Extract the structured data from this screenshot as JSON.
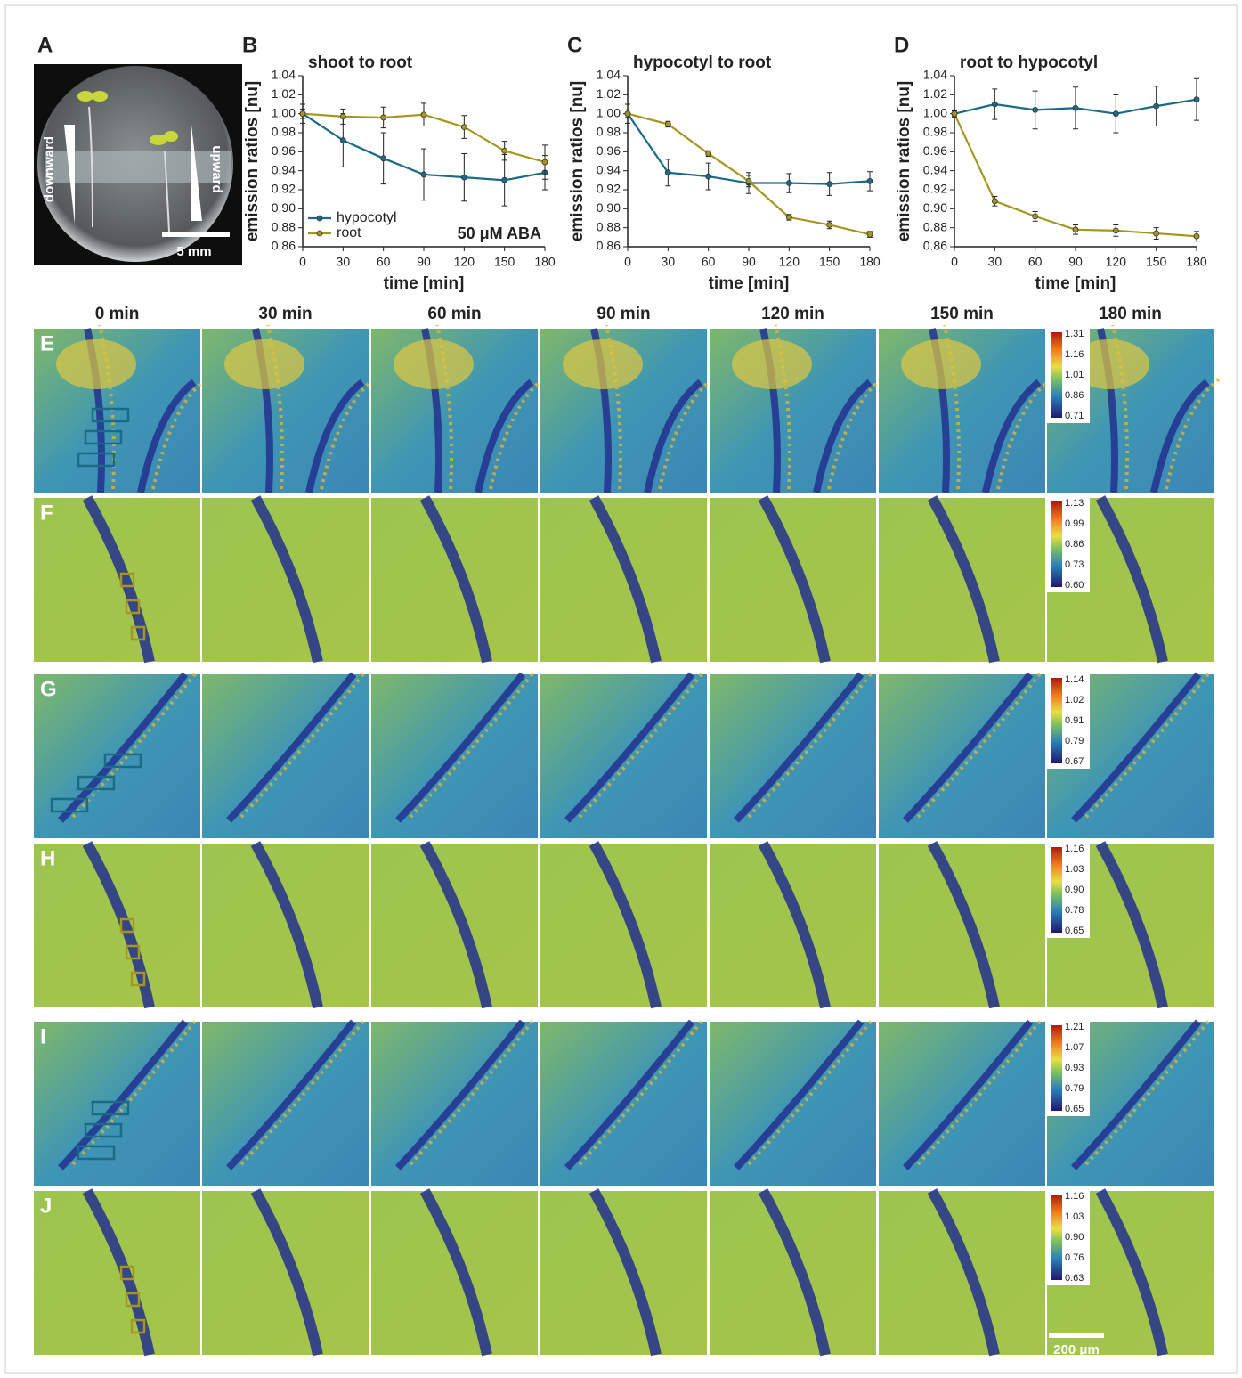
{
  "photo": {
    "label": "A",
    "left_arrow": "downward",
    "right_arrow": "upward",
    "scale_bar": "5 mm"
  },
  "time_labels": [
    "0 min",
    "30 min",
    "60 min",
    "90 min",
    "120 min",
    "150 min",
    "180 min"
  ],
  "image_rows": [
    {
      "label": "E",
      "colorbar": [
        "1.31",
        "1.16",
        "1.01",
        "0.86",
        "0.71"
      ]
    },
    {
      "label": "F",
      "colorbar": [
        "1.13",
        "0.99",
        "0.86",
        "0.73",
        "0.60"
      ]
    },
    {
      "label": "G",
      "colorbar": [
        "1.14",
        "1.02",
        "0.91",
        "0.79",
        "0.67"
      ]
    },
    {
      "label": "H",
      "colorbar": [
        "1.16",
        "1.03",
        "0.90",
        "0.78",
        "0.65"
      ]
    },
    {
      "label": "I",
      "colorbar": [
        "1.21",
        "1.07",
        "0.93",
        "0.79",
        "0.65"
      ]
    },
    {
      "label": "J",
      "colorbar": [
        "1.16",
        "1.03",
        "0.90",
        "0.76",
        "0.63"
      ]
    }
  ],
  "image_scale_bar": "200 μm",
  "chart_data": [
    {
      "type": "line",
      "label": "B",
      "title": "shoot to root",
      "xlabel": "time [min]",
      "ylabel": "emission ratios [nu]",
      "x": [
        0,
        30,
        60,
        90,
        120,
        150,
        180
      ],
      "xlim": [
        0,
        180
      ],
      "xticks": [
        0,
        30,
        60,
        90,
        120,
        150,
        180
      ],
      "ylim": [
        0.86,
        1.04
      ],
      "yticks": [
        0.86,
        0.88,
        {
          "value": 0.9,
          "label": "0.90"
        },
        0.92,
        0.94,
        0.96,
        0.98,
        {
          "value": 1,
          "label": "1.00"
        },
        1.02,
        1.04
      ],
      "legend": "lower left",
      "annotation": "50 μM ABA",
      "series": [
        {
          "name": "hypocotyl",
          "color": "#1b6a87",
          "values": [
            1.0,
            0.972,
            0.953,
            0.936,
            0.933,
            0.93,
            0.938
          ],
          "error": [
            0.005,
            0.028,
            0.027,
            0.027,
            0.025,
            0.027,
            0.018
          ]
        },
        {
          "name": "root",
          "color": "#a5961f",
          "values": [
            1.0,
            0.997,
            0.996,
            0.999,
            0.986,
            0.961,
            0.949
          ],
          "error": [
            0.01,
            0.008,
            0.011,
            0.012,
            0.012,
            0.01,
            0.018
          ]
        }
      ]
    },
    {
      "type": "line",
      "label": "C",
      "title": "hypocotyl to root",
      "xlabel": "time [min]",
      "ylabel": "emission ratios [nu]",
      "x": [
        0,
        30,
        60,
        90,
        120,
        150,
        180
      ],
      "xlim": [
        0,
        180
      ],
      "xticks": [
        0,
        30,
        60,
        90,
        120,
        150,
        180
      ],
      "ylim": [
        0.86,
        1.04
      ],
      "yticks": [
        0.86,
        0.88,
        {
          "value": 0.9,
          "label": "0.90"
        },
        0.92,
        0.94,
        0.96,
        0.98,
        {
          "value": 1,
          "label": "1.00"
        },
        1.02,
        1.04
      ],
      "series": [
        {
          "color": "#1b6a87",
          "values": [
            1.0,
            0.938,
            0.934,
            0.927,
            0.927,
            0.926,
            0.929
          ],
          "error": [
            0.01,
            0.014,
            0.014,
            0.011,
            0.01,
            0.012,
            0.01
          ]
        },
        {
          "color": "#a5961f",
          "values": [
            1.0,
            0.989,
            0.958,
            0.929,
            0.891,
            0.883,
            0.873
          ],
          "error": [
            0.004,
            0.003,
            0.003,
            0.006,
            0.003,
            0.004,
            0.003
          ]
        }
      ]
    },
    {
      "type": "line",
      "label": "D",
      "title": "root to hypocotyl",
      "xlabel": "time [min]",
      "ylabel": "emission ratios [nu]",
      "x": [
        0,
        30,
        60,
        90,
        120,
        150,
        180
      ],
      "xlim": [
        0,
        180
      ],
      "xticks": [
        0,
        30,
        60,
        90,
        120,
        150,
        180
      ],
      "ylim": [
        0.86,
        1.04
      ],
      "yticks": [
        0.86,
        0.88,
        {
          "value": 0.9,
          "label": "0.90"
        },
        0.92,
        0.94,
        0.96,
        0.98,
        {
          "value": 1,
          "label": "1.00"
        },
        1.02,
        1.04
      ],
      "series": [
        {
          "color": "#1b6a87",
          "values": [
            1.0,
            1.01,
            1.004,
            1.006,
            1.0,
            1.008,
            1.015
          ],
          "error": [
            0.003,
            0.016,
            0.02,
            0.022,
            0.02,
            0.021,
            0.022
          ]
        },
        {
          "color": "#a5961f",
          "values": [
            1.0,
            0.908,
            0.892,
            0.878,
            0.877,
            0.874,
            0.871
          ],
          "error": [
            0.004,
            0.005,
            0.005,
            0.005,
            0.006,
            0.006,
            0.005
          ]
        }
      ]
    }
  ]
}
